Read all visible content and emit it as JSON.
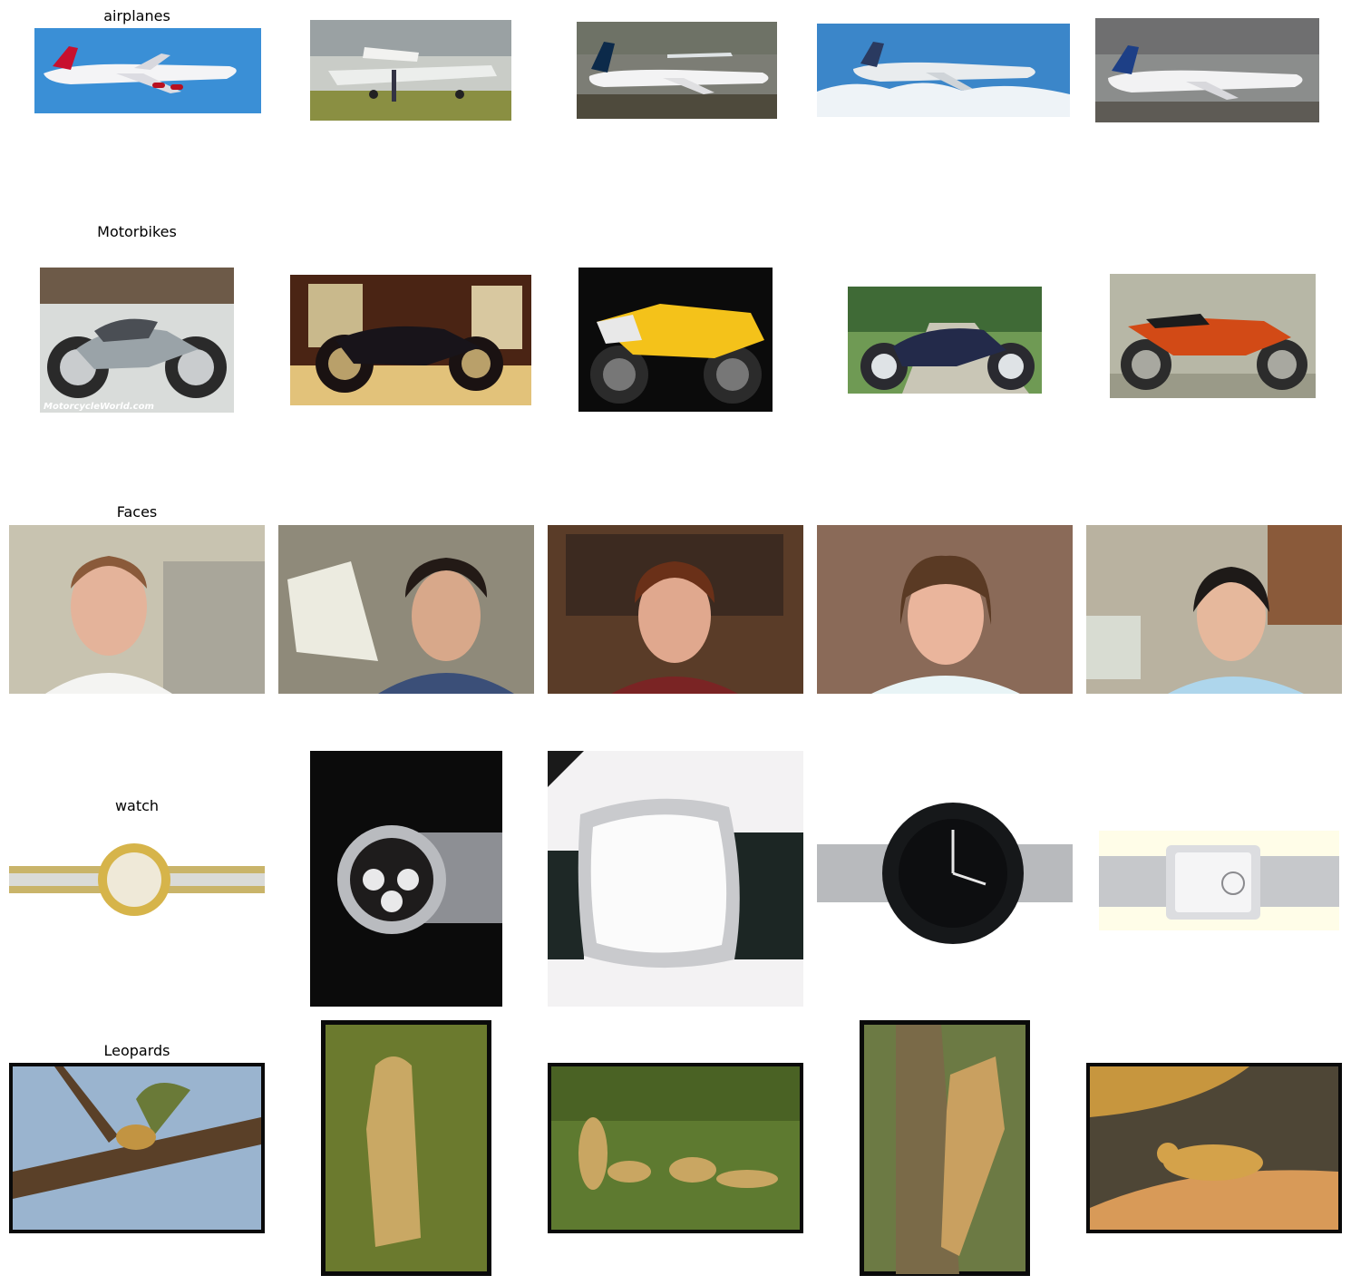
{
  "rows": [
    {
      "category": "airplanes"
    },
    {
      "category": "Motorbikes"
    },
    {
      "category": "Faces"
    },
    {
      "category": "watch"
    },
    {
      "category": "Leopards"
    }
  ],
  "watermarks": {
    "motorcycle_world": "MotorcycleWorld.com"
  },
  "colors": {
    "sky_blue": "#3a8fd6",
    "runway_grey": "#7c7d75",
    "leopard_grass": "#6b7a2e",
    "watch_black": "#0b0b0b"
  }
}
